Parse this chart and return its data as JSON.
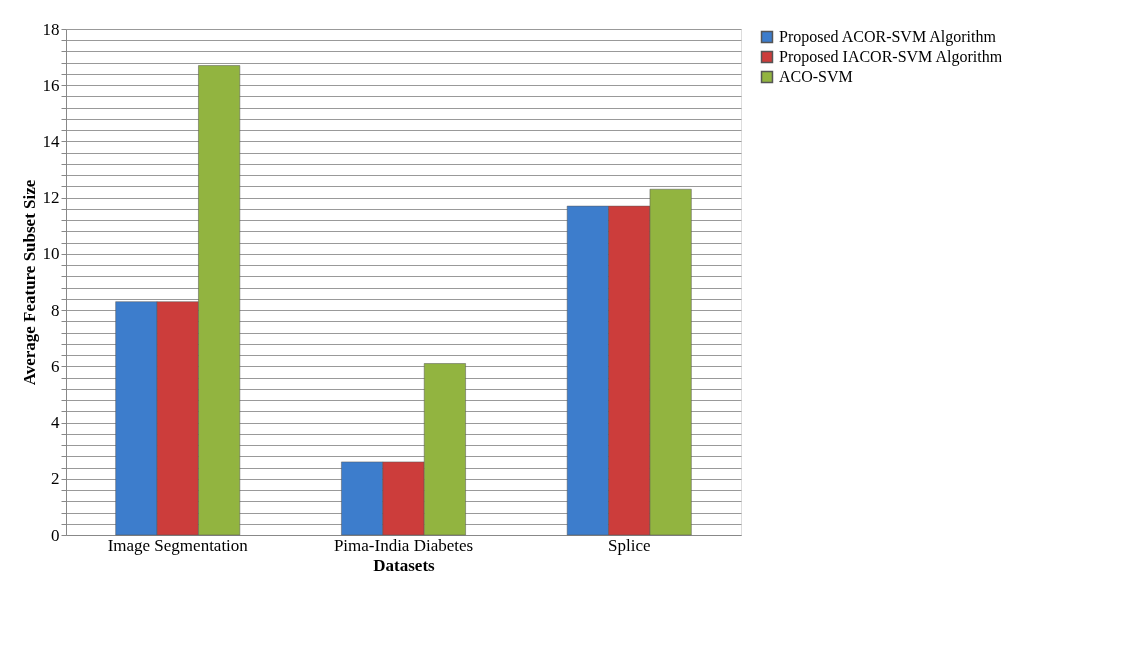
{
  "chart_data": {
    "type": "bar",
    "xlabel": "Datasets",
    "ylabel": "Average Feature Subset Size",
    "categories": [
      "Image Segmentation",
      "Pima-India Diabetes",
      "Splice"
    ],
    "series": [
      {
        "name": "Proposed ACOR-SVM Algorithm",
        "color": "#3d7dcc",
        "values": [
          8.3,
          2.6,
          11.7
        ]
      },
      {
        "name": "Proposed IACOR-SVM Algorithm",
        "color": "#cc3d3b",
        "values": [
          8.3,
          2.6,
          11.7
        ]
      },
      {
        "name": "ACO-SVM",
        "color": "#92b440",
        "values": [
          16.7,
          6.1,
          12.3
        ]
      }
    ],
    "ylim": [
      0,
      18
    ],
    "yticks": [
      0,
      {
        "value": 0.4,
        "label": null
      },
      {
        "value": 0.8,
        "label": null
      },
      {
        "value": 1.2,
        "label": null
      },
      {
        "value": 1.6,
        "label": null
      },
      2,
      {
        "value": 2.4,
        "label": null
      },
      {
        "value": 2.8,
        "label": null
      },
      {
        "value": 3.2,
        "label": null
      },
      {
        "value": 3.6,
        "label": null
      },
      4,
      {
        "value": 4.4,
        "label": null
      },
      {
        "value": 4.8,
        "label": null
      },
      {
        "value": 5.2,
        "label": null
      },
      {
        "value": 5.6,
        "label": null
      },
      6,
      {
        "value": 6.4,
        "label": null
      },
      {
        "value": 6.8,
        "label": null
      },
      {
        "value": 7.2,
        "label": null
      },
      {
        "value": 7.6,
        "label": null
      },
      8,
      {
        "value": 8.4,
        "label": null
      },
      {
        "value": 8.8,
        "label": null
      },
      {
        "value": 9.2,
        "label": null
      },
      {
        "value": 9.6,
        "label": null
      },
      10,
      {
        "value": 10.4,
        "label": null
      },
      {
        "value": 10.8,
        "label": null
      },
      {
        "value": 11.2,
        "label": null
      },
      {
        "value": 11.6,
        "label": null
      },
      12,
      {
        "value": 12.4,
        "label": null
      },
      {
        "value": 12.8,
        "label": null
      },
      {
        "value": 13.2,
        "label": null
      },
      {
        "value": 13.6,
        "label": null
      },
      14,
      {
        "value": 14.4,
        "label": null
      },
      {
        "value": 14.8,
        "label": null
      },
      {
        "value": 15.2,
        "label": null
      },
      {
        "value": 15.6,
        "label": null
      },
      16,
      {
        "value": 16.4,
        "label": null
      },
      {
        "value": 16.8,
        "label": null
      },
      {
        "value": 17.2,
        "label": null
      },
      {
        "value": 17.6,
        "label": null
      },
      18
    ],
    "grid": "y",
    "legend": "right"
  }
}
